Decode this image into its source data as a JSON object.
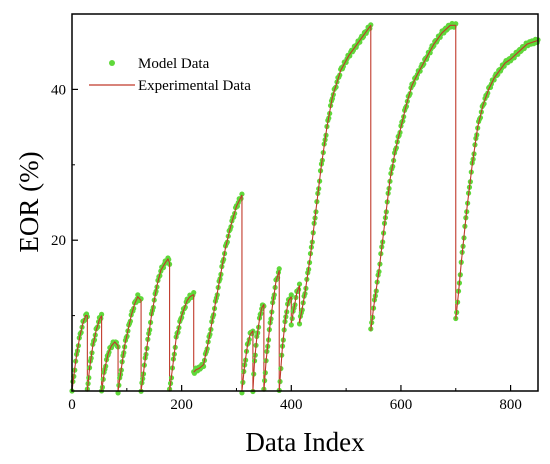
{
  "chart_data": {
    "type": "line",
    "title": "",
    "xlabel": "Data Index",
    "ylabel": "EOR (%)",
    "xlim": [
      0,
      850
    ],
    "ylim": [
      0,
      50
    ],
    "x_ticks": [
      0,
      200,
      400,
      600,
      800
    ],
    "y_ticks": [
      20,
      40
    ],
    "x_tick_labels": [
      "0",
      "200",
      "400",
      "600",
      "800"
    ],
    "y_tick_labels": [
      "20",
      "40"
    ],
    "grid": false,
    "legend_position": "top-left",
    "colors": {
      "model": "#5fd83a",
      "experimental": "#c0392b"
    },
    "series": [
      {
        "name": "Model Data",
        "style": "markers"
      },
      {
        "name": "Experimental Data",
        "style": "line"
      }
    ],
    "segments": [
      {
        "x": [
          0,
          5,
          10,
          15,
          20,
          25,
          28
        ],
        "y": [
          0,
          3,
          5.5,
          7.5,
          9,
          10,
          10
        ]
      },
      {
        "x": [
          28,
          32,
          38,
          44,
          50,
          54
        ],
        "y": [
          0,
          3,
          6,
          8,
          9.5,
          10
        ]
      },
      {
        "x": [
          54,
          60,
          66,
          72,
          78,
          84
        ],
        "y": [
          0,
          3,
          5,
          6,
          6.5,
          6
        ]
      },
      {
        "x": [
          84,
          90,
          96,
          102,
          108,
          114,
          120,
          126
        ],
        "y": [
          0,
          3,
          6,
          8,
          10,
          11.5,
          12.5,
          12
        ]
      },
      {
        "x": [
          126,
          135,
          145,
          155,
          162,
          170,
          175,
          178
        ],
        "y": [
          0,
          5,
          10,
          14,
          16,
          17,
          17.5,
          17
        ]
      },
      {
        "x": [
          178,
          185,
          190,
          195,
          200,
          205,
          210,
          215,
          222
        ],
        "y": [
          0,
          4,
          7,
          8.5,
          10,
          11,
          12,
          12.5,
          12.8
        ]
      },
      {
        "x": [
          222,
          226,
          232,
          240,
          250,
          260,
          270,
          280,
          290,
          300,
          310
        ],
        "y": [
          2.5,
          2.8,
          3,
          3.5,
          7,
          11,
          15,
          19,
          22,
          24.5,
          26
        ]
      },
      {
        "x": [
          310,
          315,
          320,
          325,
          330
        ],
        "y": [
          0,
          3.5,
          6,
          7.5,
          8
        ]
      },
      {
        "x": [
          330,
          333,
          337,
          342,
          346,
          350
        ],
        "y": [
          0,
          4,
          7,
          9.5,
          11,
          11.5
        ]
      },
      {
        "x": [
          350,
          354,
          360,
          366,
          372,
          378
        ],
        "y": [
          0,
          4,
          8,
          11.5,
          14.5,
          16
        ]
      },
      {
        "x": [
          378,
          384,
          390,
          395,
          400
        ],
        "y": [
          0,
          6,
          10,
          12,
          12.5
        ]
      },
      {
        "x": [
          400,
          405,
          410,
          415
        ],
        "y": [
          9,
          11,
          13,
          14
        ]
      },
      {
        "x": [
          415,
          425,
          435,
          445,
          455,
          465,
          475,
          490,
          505,
          520,
          535,
          545
        ],
        "y": [
          9,
          13,
          18,
          24,
          30,
          35,
          39,
          42.5,
          44.5,
          46,
          47.5,
          48.5
        ]
      },
      {
        "x": [
          545,
          550,
          560,
          570,
          580,
          590,
          600,
          610,
          620,
          630,
          645,
          660,
          675,
          690,
          700
        ],
        "y": [
          8,
          11,
          16,
          22,
          28,
          32,
          35,
          38,
          40.5,
          42,
          44,
          46,
          47.5,
          48.5,
          48.5
        ]
      },
      {
        "x": [
          700,
          705,
          710,
          720,
          730,
          740,
          750,
          760,
          770,
          780,
          790,
          800,
          815,
          830,
          850
        ],
        "y": [
          9.5,
          13,
          17,
          24,
          30,
          35,
          38,
          40,
          41.5,
          42.5,
          43.5,
          44,
          45,
          46,
          46.5
        ]
      }
    ]
  }
}
